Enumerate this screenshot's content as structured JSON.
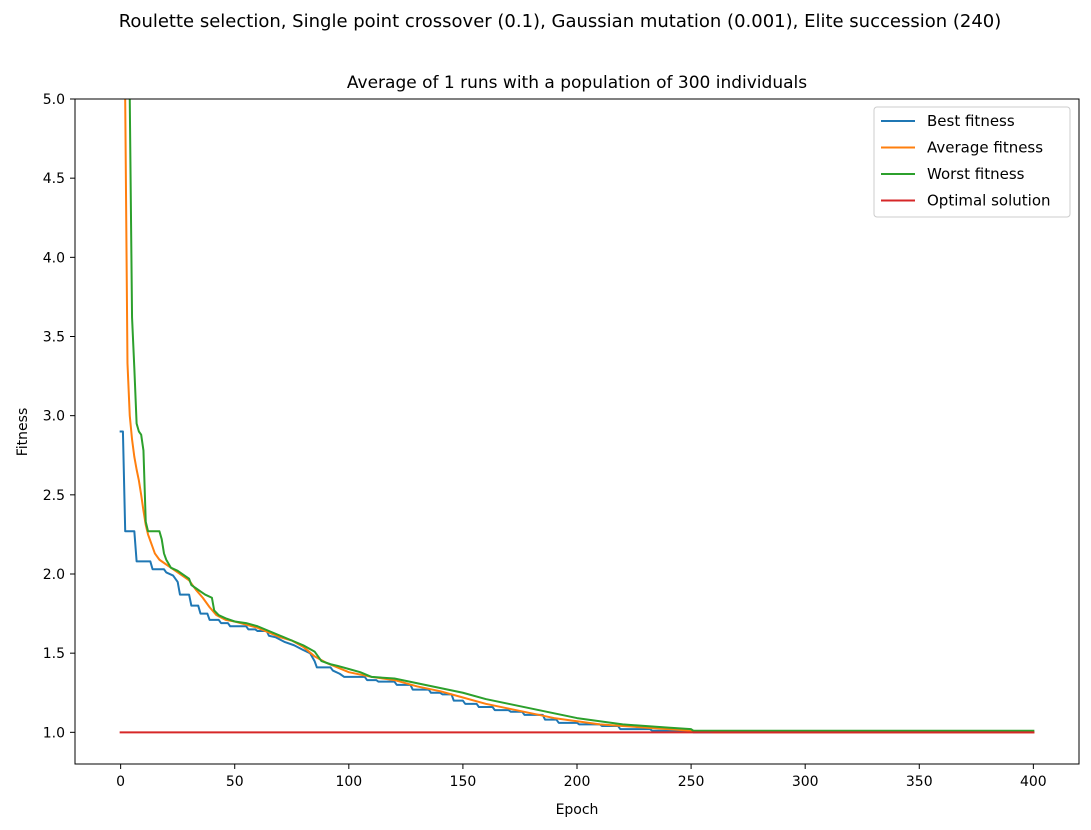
{
  "chart_data": {
    "type": "line",
    "suptitle": "Roulette selection, Single point crossover (0.1), Gaussian mutation (0.001), Elite succession (240)",
    "title": "Average of 1 runs with a population of 300 individuals",
    "xlabel": "Epoch",
    "ylabel": "Fitness",
    "xlim": [
      -20,
      420
    ],
    "ylim": [
      0.8,
      5.0
    ],
    "xticks": [
      0,
      50,
      100,
      150,
      200,
      250,
      300,
      350,
      400
    ],
    "xtick_labels": [
      "0",
      "50",
      "100",
      "150",
      "200",
      "250",
      "300",
      "350",
      "400"
    ],
    "yticks": [
      1.0,
      1.5,
      2.0,
      2.5,
      3.0,
      3.5,
      4.0,
      4.5,
      5.0
    ],
    "ytick_labels": [
      "1.0",
      "1.5",
      "2.0",
      "2.5",
      "3.0",
      "3.5",
      "4.0",
      "4.5",
      "5.0"
    ],
    "grid": false,
    "legend_position": "top-right",
    "series": [
      {
        "name": "Best fitness",
        "color": "#1f77b4",
        "points": [
          [
            0,
            2.9
          ],
          [
            1,
            2.9
          ],
          [
            2,
            2.27
          ],
          [
            6,
            2.27
          ],
          [
            7,
            2.08
          ],
          [
            13,
            2.08
          ],
          [
            14,
            2.03
          ],
          [
            19,
            2.03
          ],
          [
            20,
            2.01
          ],
          [
            23,
            1.99
          ],
          [
            25,
            1.95
          ],
          [
            26,
            1.87
          ],
          [
            30,
            1.87
          ],
          [
            31,
            1.8
          ],
          [
            34,
            1.8
          ],
          [
            35,
            1.75
          ],
          [
            38,
            1.75
          ],
          [
            39,
            1.71
          ],
          [
            43,
            1.71
          ],
          [
            44,
            1.69
          ],
          [
            47,
            1.69
          ],
          [
            48,
            1.67
          ],
          [
            55,
            1.67
          ],
          [
            56,
            1.65
          ],
          [
            59,
            1.65
          ],
          [
            60,
            1.64
          ],
          [
            64,
            1.64
          ],
          [
            65,
            1.61
          ],
          [
            68,
            1.6
          ],
          [
            72,
            1.57
          ],
          [
            76,
            1.55
          ],
          [
            80,
            1.52
          ],
          [
            83,
            1.5
          ],
          [
            85,
            1.45
          ],
          [
            86,
            1.41
          ],
          [
            92,
            1.41
          ],
          [
            93,
            1.39
          ],
          [
            96,
            1.37
          ],
          [
            98,
            1.35
          ],
          [
            107,
            1.35
          ],
          [
            108,
            1.33
          ],
          [
            112,
            1.33
          ],
          [
            113,
            1.32
          ],
          [
            120,
            1.32
          ],
          [
            121,
            1.3
          ],
          [
            127,
            1.3
          ],
          [
            128,
            1.27
          ],
          [
            135,
            1.27
          ],
          [
            136,
            1.25
          ],
          [
            140,
            1.25
          ],
          [
            141,
            1.24
          ],
          [
            145,
            1.24
          ],
          [
            146,
            1.2
          ],
          [
            150,
            1.2
          ],
          [
            151,
            1.18
          ],
          [
            156,
            1.18
          ],
          [
            157,
            1.16
          ],
          [
            163,
            1.16
          ],
          [
            164,
            1.14
          ],
          [
            170,
            1.14
          ],
          [
            171,
            1.13
          ],
          [
            176,
            1.13
          ],
          [
            177,
            1.11
          ],
          [
            185,
            1.11
          ],
          [
            186,
            1.08
          ],
          [
            191,
            1.08
          ],
          [
            192,
            1.06
          ],
          [
            200,
            1.06
          ],
          [
            201,
            1.05
          ],
          [
            210,
            1.05
          ],
          [
            211,
            1.04
          ],
          [
            218,
            1.04
          ],
          [
            219,
            1.02
          ],
          [
            232,
            1.02
          ],
          [
            233,
            1.01
          ],
          [
            250,
            1.01
          ],
          [
            251,
            1.0
          ],
          [
            400,
            1.0
          ]
        ]
      },
      {
        "name": "Average fitness",
        "color": "#ff7f0e",
        "points": [
          [
            2,
            5.0
          ],
          [
            3,
            3.33
          ],
          [
            4,
            3.0
          ],
          [
            5,
            2.85
          ],
          [
            6,
            2.74
          ],
          [
            7,
            2.66
          ],
          [
            8,
            2.59
          ],
          [
            9,
            2.5
          ],
          [
            10,
            2.4
          ],
          [
            11,
            2.31
          ],
          [
            12,
            2.25
          ],
          [
            13,
            2.21
          ],
          [
            14,
            2.17
          ],
          [
            15,
            2.13
          ],
          [
            17,
            2.09
          ],
          [
            20,
            2.06
          ],
          [
            24,
            2.02
          ],
          [
            27,
            1.99
          ],
          [
            30,
            1.96
          ],
          [
            33,
            1.9
          ],
          [
            36,
            1.85
          ],
          [
            39,
            1.79
          ],
          [
            42,
            1.74
          ],
          [
            46,
            1.71
          ],
          [
            50,
            1.7
          ],
          [
            55,
            1.68
          ],
          [
            60,
            1.66
          ],
          [
            65,
            1.63
          ],
          [
            70,
            1.6
          ],
          [
            75,
            1.58
          ],
          [
            80,
            1.54
          ],
          [
            85,
            1.48
          ],
          [
            90,
            1.44
          ],
          [
            95,
            1.41
          ],
          [
            100,
            1.38
          ],
          [
            110,
            1.35
          ],
          [
            120,
            1.33
          ],
          [
            130,
            1.29
          ],
          [
            140,
            1.26
          ],
          [
            150,
            1.22
          ],
          [
            160,
            1.18
          ],
          [
            170,
            1.15
          ],
          [
            180,
            1.12
          ],
          [
            190,
            1.09
          ],
          [
            200,
            1.07
          ],
          [
            210,
            1.05
          ],
          [
            220,
            1.04
          ],
          [
            230,
            1.03
          ],
          [
            240,
            1.02
          ],
          [
            250,
            1.01
          ],
          [
            260,
            1.0
          ],
          [
            300,
            1.0
          ],
          [
            400,
            1.0
          ]
        ]
      },
      {
        "name": "Worst fitness",
        "color": "#2ca02c",
        "points": [
          [
            4,
            5.0
          ],
          [
            5,
            3.62
          ],
          [
            6,
            3.3
          ],
          [
            7,
            2.95
          ],
          [
            8,
            2.9
          ],
          [
            9,
            2.88
          ],
          [
            10,
            2.78
          ],
          [
            11,
            2.33
          ],
          [
            12,
            2.27
          ],
          [
            17,
            2.27
          ],
          [
            18,
            2.22
          ],
          [
            19,
            2.13
          ],
          [
            20,
            2.09
          ],
          [
            22,
            2.04
          ],
          [
            25,
            2.02
          ],
          [
            28,
            1.99
          ],
          [
            30,
            1.97
          ],
          [
            31,
            1.93
          ],
          [
            33,
            1.91
          ],
          [
            35,
            1.89
          ],
          [
            37,
            1.87
          ],
          [
            40,
            1.85
          ],
          [
            41,
            1.77
          ],
          [
            43,
            1.74
          ],
          [
            46,
            1.72
          ],
          [
            50,
            1.7
          ],
          [
            55,
            1.69
          ],
          [
            60,
            1.67
          ],
          [
            65,
            1.64
          ],
          [
            70,
            1.61
          ],
          [
            75,
            1.58
          ],
          [
            80,
            1.55
          ],
          [
            85,
            1.51
          ],
          [
            88,
            1.45
          ],
          [
            92,
            1.43
          ],
          [
            95,
            1.42
          ],
          [
            100,
            1.4
          ],
          [
            105,
            1.38
          ],
          [
            110,
            1.35
          ],
          [
            120,
            1.34
          ],
          [
            130,
            1.31
          ],
          [
            140,
            1.28
          ],
          [
            150,
            1.25
          ],
          [
            160,
            1.21
          ],
          [
            170,
            1.18
          ],
          [
            180,
            1.15
          ],
          [
            190,
            1.12
          ],
          [
            200,
            1.09
          ],
          [
            210,
            1.07
          ],
          [
            220,
            1.05
          ],
          [
            230,
            1.04
          ],
          [
            240,
            1.03
          ],
          [
            250,
            1.02
          ],
          [
            251,
            1.01
          ],
          [
            400,
            1.01
          ]
        ]
      },
      {
        "name": "Optimal solution",
        "color": "#d62728",
        "points": [
          [
            0,
            1.0
          ],
          [
            400,
            1.0
          ]
        ]
      }
    ]
  }
}
